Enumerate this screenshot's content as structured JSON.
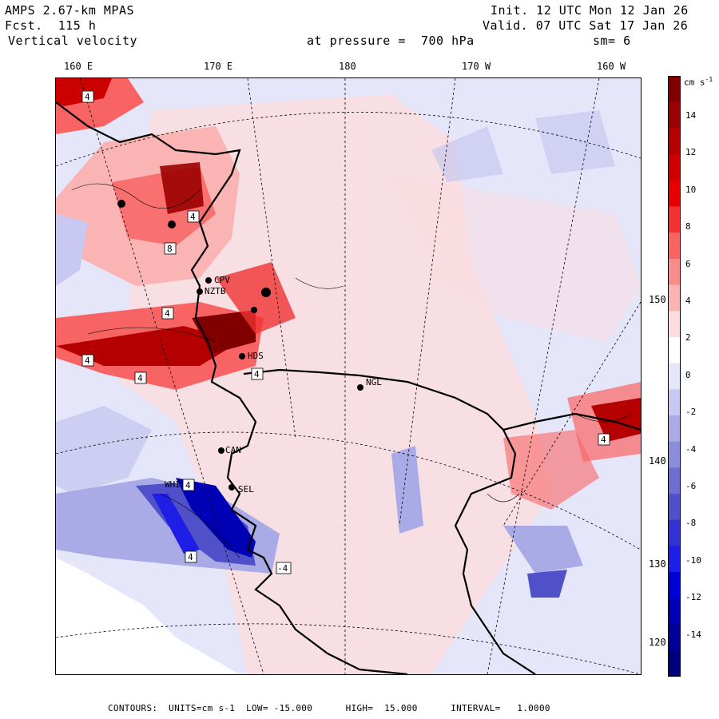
{
  "header": {
    "model": "AMPS 2.67-km MPAS",
    "fcst": "Fcst.  115 h",
    "field": "Vertical velocity",
    "init": "Init. 12 UTC Mon 12 Jan 26",
    "valid": "Valid. 07 UTC Sat 17 Jan 26",
    "pressure": "at pressure =  700 hPa",
    "smooth": "sm= 6"
  },
  "longitude_labels": [
    "160 E",
    "170 E",
    "180",
    "170 W",
    "160 W"
  ],
  "latitude_labels": [
    "150 W",
    "140 W",
    "130 W",
    "120 W"
  ],
  "stations": [
    "CPV",
    "NZTB",
    "HDS",
    "NGL",
    "CAN",
    "WHI",
    "SEL"
  ],
  "box_markers": [
    "4",
    "4",
    "8",
    "4",
    "4",
    "4",
    "4",
    "4",
    "4",
    "-4",
    "4"
  ],
  "colorbar": {
    "unit_label": "cm s",
    "unit_exp": "-1",
    "tick_labels": [
      "14",
      "12",
      "10",
      "8",
      "6",
      "4",
      "2",
      "0",
      "-2",
      "-4",
      "-6",
      "-8",
      "-10",
      "-12",
      "-14"
    ],
    "colors": [
      "#800000",
      "#9b0000",
      "#b40000",
      "#cd0000",
      "#e60000",
      "#f03232",
      "#f86464",
      "#fa8c8c",
      "#fbb4b4",
      "#fcdcdc",
      "#ffffff",
      "#e6e6fa",
      "#c8c8f0",
      "#aaaae6",
      "#8c8cdc",
      "#6e6ed2",
      "#5050c8",
      "#3232d2",
      "#1e1ee6",
      "#0000d2",
      "#0000b4",
      "#000096",
      "#00007d"
    ]
  },
  "footer": "CONTOURS:  UNITS=cm s-1  LOW= -15.000      HIGH=  15.000      INTERVAL=   1.0000"
}
